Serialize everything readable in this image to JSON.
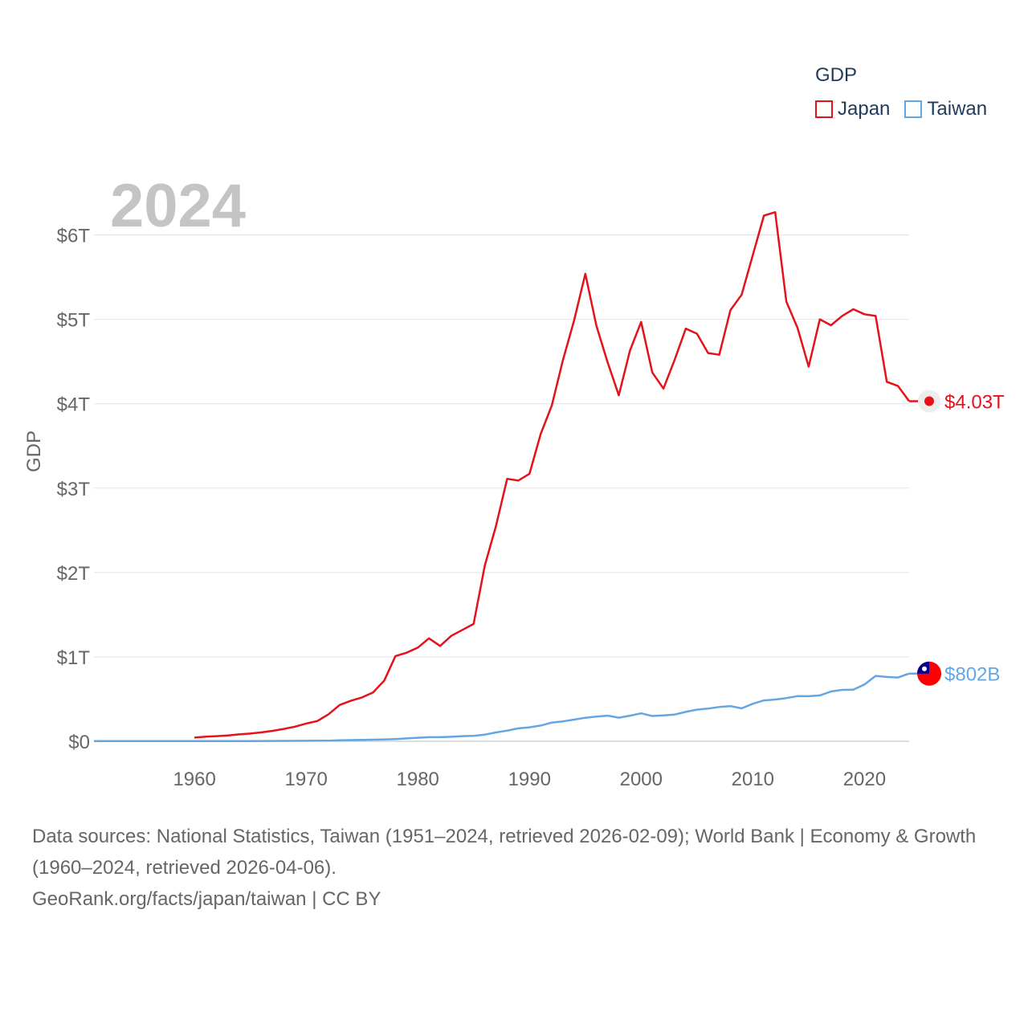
{
  "legend": {
    "title": "GDP",
    "items": [
      {
        "label": "Japan",
        "color": "#e3121b"
      },
      {
        "label": "Taiwan",
        "color": "#64a6e2"
      }
    ]
  },
  "chart_data": {
    "type": "line",
    "title": "",
    "xlabel": "",
    "ylabel": "GDP",
    "year_label": "2024",
    "xlim": [
      1951,
      2024
    ],
    "ylim": [
      0,
      6.5
    ],
    "x_ticks": [
      1960,
      1970,
      1980,
      1990,
      2000,
      2010,
      2020
    ],
    "y_ticks": [
      {
        "value": 0,
        "label": "$0"
      },
      {
        "value": 1,
        "label": "$1T"
      },
      {
        "value": 2,
        "label": "$2T"
      },
      {
        "value": 3,
        "label": "$3T"
      },
      {
        "value": 4,
        "label": "$4T"
      },
      {
        "value": 5,
        "label": "$5T"
      },
      {
        "value": 6,
        "label": "$6T"
      }
    ],
    "value_unit": "trillion USD",
    "grid": true,
    "series": [
      {
        "name": "Japan",
        "color": "#e3121b",
        "end_label": "$4.03T",
        "points": [
          [
            1960,
            0.044
          ],
          [
            1961,
            0.054
          ],
          [
            1962,
            0.061
          ],
          [
            1963,
            0.069
          ],
          [
            1964,
            0.082
          ],
          [
            1965,
            0.091
          ],
          [
            1966,
            0.106
          ],
          [
            1967,
            0.124
          ],
          [
            1968,
            0.147
          ],
          [
            1969,
            0.173
          ],
          [
            1970,
            0.21
          ],
          [
            1971,
            0.24
          ],
          [
            1972,
            0.32
          ],
          [
            1973,
            0.43
          ],
          [
            1974,
            0.48
          ],
          [
            1975,
            0.52
          ],
          [
            1976,
            0.58
          ],
          [
            1977,
            0.72
          ],
          [
            1978,
            1.01
          ],
          [
            1979,
            1.05
          ],
          [
            1980,
            1.11
          ],
          [
            1981,
            1.22
          ],
          [
            1982,
            1.13
          ],
          [
            1983,
            1.25
          ],
          [
            1984,
            1.32
          ],
          [
            1985,
            1.39
          ],
          [
            1986,
            2.08
          ],
          [
            1987,
            2.55
          ],
          [
            1988,
            3.11
          ],
          [
            1989,
            3.09
          ],
          [
            1990,
            3.17
          ],
          [
            1991,
            3.64
          ],
          [
            1992,
            3.98
          ],
          [
            1993,
            4.52
          ],
          [
            1994,
            4.99
          ],
          [
            1995,
            5.54
          ],
          [
            1996,
            4.92
          ],
          [
            1997,
            4.49
          ],
          [
            1998,
            4.1
          ],
          [
            1999,
            4.63
          ],
          [
            2000,
            4.97
          ],
          [
            2001,
            4.37
          ],
          [
            2002,
            4.18
          ],
          [
            2003,
            4.52
          ],
          [
            2004,
            4.89
          ],
          [
            2005,
            4.83
          ],
          [
            2006,
            4.6
          ],
          [
            2007,
            4.58
          ],
          [
            2008,
            5.11
          ],
          [
            2009,
            5.29
          ],
          [
            2010,
            5.76
          ],
          [
            2011,
            6.23
          ],
          [
            2012,
            6.27
          ],
          [
            2013,
            5.21
          ],
          [
            2014,
            4.9
          ],
          [
            2015,
            4.44
          ],
          [
            2016,
            5.0
          ],
          [
            2017,
            4.93
          ],
          [
            2018,
            5.04
          ],
          [
            2019,
            5.12
          ],
          [
            2020,
            5.06
          ],
          [
            2021,
            5.04
          ],
          [
            2022,
            4.26
          ],
          [
            2023,
            4.21
          ],
          [
            2024,
            4.03
          ]
        ]
      },
      {
        "name": "Taiwan",
        "color": "#64a6e2",
        "end_label": "$802B",
        "points": [
          [
            1951,
            0.0017
          ],
          [
            1955,
            0.0023
          ],
          [
            1960,
            0.0017
          ],
          [
            1965,
            0.0029
          ],
          [
            1970,
            0.0057
          ],
          [
            1971,
            0.0066
          ],
          [
            1972,
            0.008
          ],
          [
            1973,
            0.011
          ],
          [
            1974,
            0.014
          ],
          [
            1975,
            0.016
          ],
          [
            1976,
            0.019
          ],
          [
            1977,
            0.022
          ],
          [
            1978,
            0.027
          ],
          [
            1979,
            0.034
          ],
          [
            1980,
            0.042
          ],
          [
            1981,
            0.049
          ],
          [
            1982,
            0.049
          ],
          [
            1983,
            0.053
          ],
          [
            1984,
            0.061
          ],
          [
            1985,
            0.064
          ],
          [
            1986,
            0.079
          ],
          [
            1987,
            0.105
          ],
          [
            1988,
            0.127
          ],
          [
            1989,
            0.153
          ],
          [
            1990,
            0.166
          ],
          [
            1991,
            0.187
          ],
          [
            1992,
            0.222
          ],
          [
            1993,
            0.236
          ],
          [
            1994,
            0.257
          ],
          [
            1995,
            0.279
          ],
          [
            1996,
            0.292
          ],
          [
            1997,
            0.304
          ],
          [
            1998,
            0.28
          ],
          [
            1999,
            0.304
          ],
          [
            2000,
            0.331
          ],
          [
            2001,
            0.3
          ],
          [
            2002,
            0.307
          ],
          [
            2003,
            0.317
          ],
          [
            2004,
            0.348
          ],
          [
            2005,
            0.375
          ],
          [
            2006,
            0.387
          ],
          [
            2007,
            0.406
          ],
          [
            2008,
            0.417
          ],
          [
            2009,
            0.39
          ],
          [
            2010,
            0.444
          ],
          [
            2011,
            0.484
          ],
          [
            2012,
            0.495
          ],
          [
            2013,
            0.512
          ],
          [
            2014,
            0.535
          ],
          [
            2015,
            0.534
          ],
          [
            2016,
            0.543
          ],
          [
            2017,
            0.59
          ],
          [
            2018,
            0.609
          ],
          [
            2019,
            0.611
          ],
          [
            2020,
            0.673
          ],
          [
            2021,
            0.775
          ],
          [
            2022,
            0.762
          ],
          [
            2023,
            0.756
          ],
          [
            2024,
            0.802
          ]
        ]
      }
    ]
  },
  "footer": {
    "sources": "Data sources: National Statistics, Taiwan (1951–2024, retrieved 2026-02-09); World Bank | Economy & Growth (1960–2024, retrieved 2026-04-06).",
    "credit": "GeoRank.org/facts/japan/taiwan | CC BY"
  }
}
